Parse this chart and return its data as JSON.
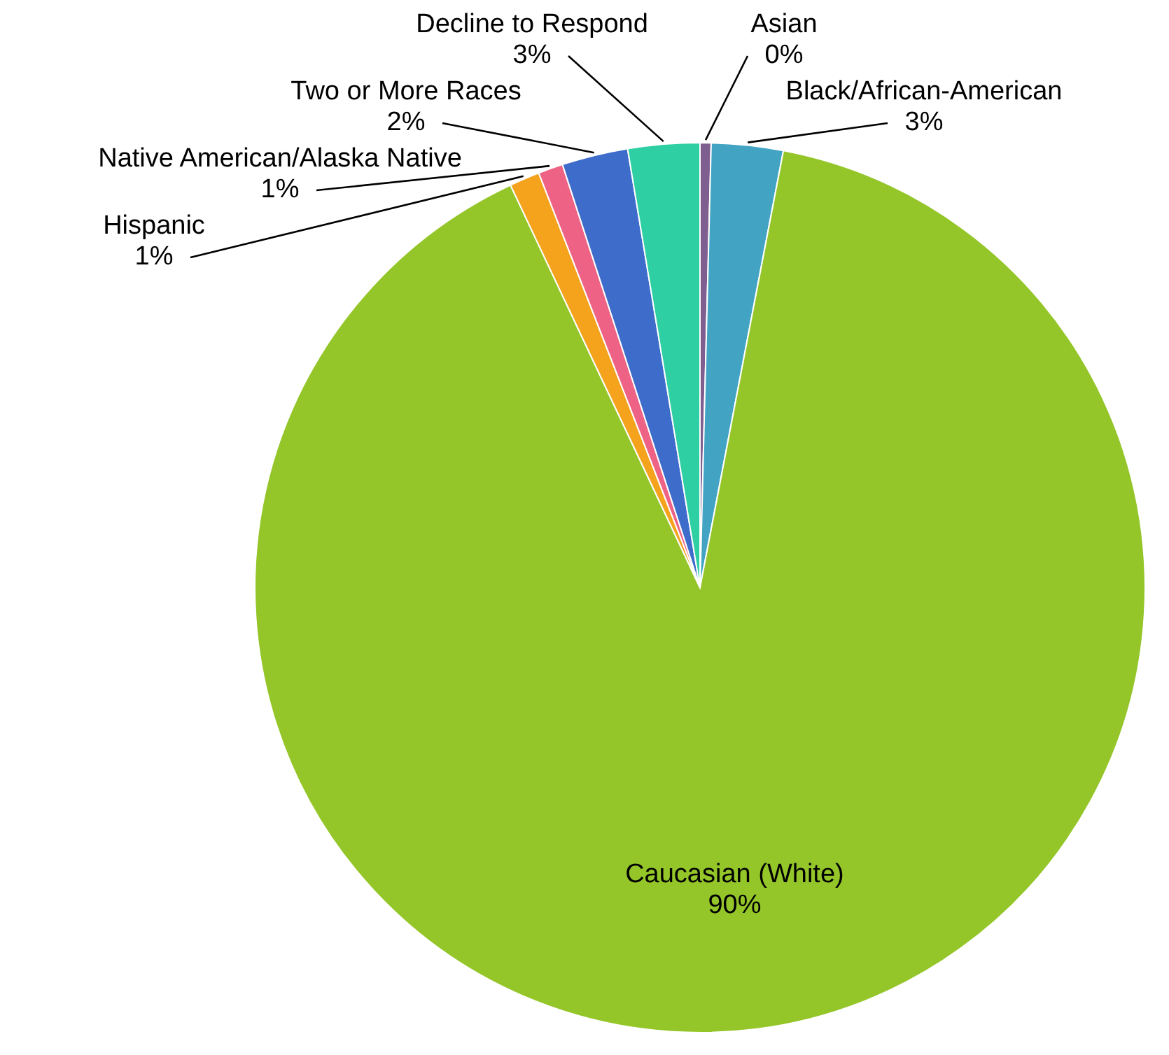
{
  "chart_data": {
    "type": "pie",
    "categories": [
      "Asian",
      "Black/African-American",
      "Caucasian (White)",
      "Hispanic",
      "Native American/Alaska Native",
      "Two or More Races",
      "Decline to Respond"
    ],
    "values": [
      0.4,
      2.6,
      90,
      1.1,
      0.9,
      2.4,
      2.6
    ],
    "value_labels": [
      "0%",
      "3%",
      "90%",
      "1%",
      "1%",
      "2%",
      "3%"
    ],
    "colors": [
      "#7e5f8f",
      "#42a3c3",
      "#94c629",
      "#f5a31d",
      "#ee6385",
      "#3e6ccb",
      "#2dcfa3"
    ]
  }
}
